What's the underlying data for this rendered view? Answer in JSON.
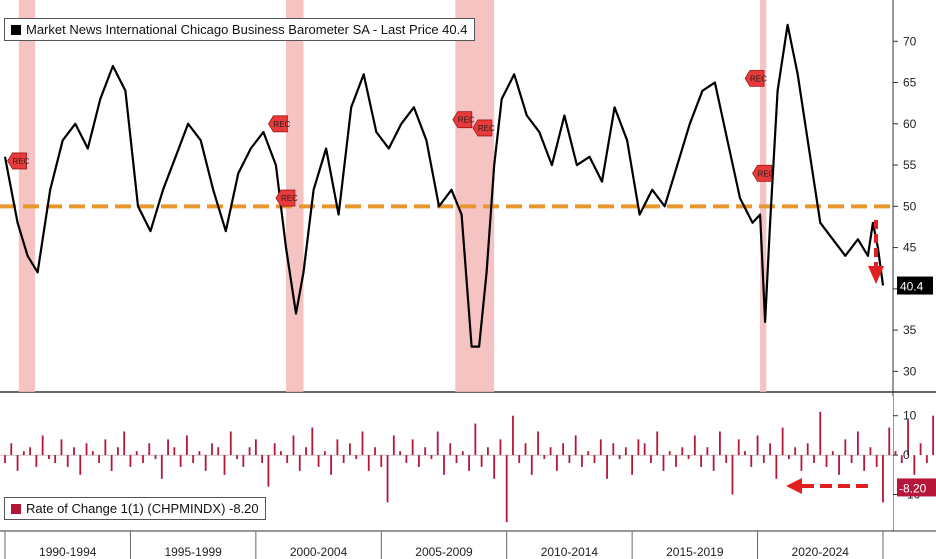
{
  "chart_data": [
    {
      "type": "line",
      "title": "Market News International Chicago Business Barometer SA - Last Price 40.4",
      "series": [
        {
          "name": "Market News International Chicago Business Barometer SA",
          "last_price": 40.4,
          "last_label": "40.4",
          "color": "#000000",
          "x": [
            1990.0,
            1990.5,
            1990.9,
            1991.3,
            1991.8,
            1992.3,
            1992.8,
            1993.3,
            1993.8,
            1994.3,
            1994.8,
            1995.3,
            1995.8,
            1996.3,
            1996.8,
            1997.3,
            1997.8,
            1998.3,
            1998.8,
            1999.3,
            1999.8,
            2000.3,
            2000.8,
            2001.2,
            2001.6,
            2001.9,
            2002.3,
            2002.8,
            2003.3,
            2003.8,
            2004.3,
            2004.8,
            2005.3,
            2005.8,
            2006.3,
            2006.8,
            2007.3,
            2007.8,
            2008.2,
            2008.6,
            2008.9,
            2009.2,
            2009.5,
            2009.8,
            2010.3,
            2010.8,
            2011.3,
            2011.8,
            2012.3,
            2012.8,
            2013.3,
            2013.8,
            2014.3,
            2014.8,
            2015.3,
            2015.8,
            2016.3,
            2016.8,
            2017.3,
            2017.8,
            2018.3,
            2018.8,
            2019.3,
            2019.8,
            2020.1,
            2020.3,
            2020.5,
            2020.8,
            2021.2,
            2021.6,
            2022.0,
            2022.5,
            2023.0,
            2023.5,
            2024.0,
            2024.4,
            2024.6,
            2024.8,
            2025.0
          ],
          "values": [
            56,
            48,
            44,
            42,
            52,
            58,
            60,
            57,
            63,
            67,
            64,
            50,
            47,
            52,
            56,
            60,
            58,
            52,
            47,
            54,
            57,
            59,
            55,
            45,
            37,
            42,
            52,
            57,
            49,
            62,
            66,
            59,
            57,
            60,
            62,
            58,
            50,
            52,
            49,
            33,
            33,
            42,
            55,
            63,
            66,
            61,
            59,
            55,
            61,
            55,
            56,
            53,
            62,
            58,
            49,
            52,
            50,
            55,
            60,
            64,
            65,
            58,
            51,
            48,
            49,
            36,
            48,
            64,
            72,
            66,
            58,
            48,
            46,
            44,
            46,
            44,
            48,
            45,
            40.4
          ]
        }
      ],
      "xlim": [
        1989.8,
        2025.4
      ],
      "ylim": [
        27.5,
        75
      ],
      "y_ticks": [
        30,
        35,
        40,
        45,
        50,
        55,
        60,
        65,
        70
      ],
      "reference_line": {
        "value": 50,
        "style": "dashed",
        "color": "#e8962e"
      },
      "recessions": [
        {
          "start": 1990.55,
          "end": 1991.2
        },
        {
          "start": 2001.2,
          "end": 2001.9
        },
        {
          "start": 2007.95,
          "end": 2009.5
        },
        {
          "start": 2020.1,
          "end": 2020.35
        }
      ],
      "rec_markers": [
        {
          "x": 1990.5,
          "y": 55.5,
          "label": "REC"
        },
        {
          "x": 2000.9,
          "y": 60.0,
          "label": "REC"
        },
        {
          "x": 2001.2,
          "y": 51.0,
          "label": "REC"
        },
        {
          "x": 2008.25,
          "y": 60.5,
          "label": "REC"
        },
        {
          "x": 2009.05,
          "y": 59.5,
          "label": "REC"
        },
        {
          "x": 2019.9,
          "y": 65.5,
          "label": "REC"
        },
        {
          "x": 2020.2,
          "y": 54.0,
          "label": "REC"
        }
      ],
      "colors": {
        "recession": "#f4b8b8",
        "annotation_arrow": "#e02020",
        "rec_marker": "#e83a3a"
      }
    },
    {
      "type": "bar",
      "title": "Rate of Change 1(1) (CHPMINDX) -8.20",
      "series": [
        {
          "name": "Rate of Change 1(1) (CHPMINDX)",
          "last_label": "-8.20",
          "color": "#b5163a",
          "x_start": 1990.0,
          "x_step": 0.25,
          "values": [
            -2,
            3,
            -4,
            1,
            2,
            -3,
            5,
            -1,
            -2,
            4,
            -3,
            2,
            -5,
            3,
            1,
            -2,
            4,
            -4,
            2,
            6,
            -3,
            1,
            -2,
            3,
            -1,
            -6,
            4,
            2,
            -3,
            5,
            -2,
            1,
            -4,
            3,
            2,
            -5,
            6,
            -1,
            -3,
            2,
            4,
            -2,
            -8,
            3,
            1,
            -2,
            5,
            -4,
            2,
            7,
            -3,
            1,
            -5,
            4,
            -2,
            3,
            -1,
            6,
            -4,
            2,
            -3,
            -12,
            5,
            1,
            -2,
            4,
            -3,
            2,
            -1,
            6,
            -5,
            3,
            -2,
            1,
            -4,
            8,
            -3,
            2,
            -6,
            4,
            -17,
            10,
            -2,
            3,
            -5,
            6,
            -1,
            2,
            -4,
            3,
            -2,
            5,
            -3,
            1,
            -2,
            4,
            -6,
            3,
            -1,
            2,
            -5,
            4,
            3,
            -2,
            6,
            -4,
            1,
            -3,
            2,
            -1,
            5,
            -3,
            2,
            -4,
            6,
            -2,
            -10,
            4,
            1,
            -3,
            5,
            -2,
            3,
            -6,
            7,
            -1,
            2,
            -4,
            3,
            -2,
            11,
            -3,
            1,
            -5,
            4,
            -2,
            6,
            -4,
            2,
            -3,
            -12,
            7,
            1,
            -2,
            9,
            -5,
            3,
            -2,
            10,
            -4,
            2,
            -6,
            5,
            -1,
            -4,
            15,
            -3,
            2,
            7,
            -4,
            -3,
            1,
            -5,
            6,
            -2,
            8,
            -1,
            4,
            -4,
            -5,
            14,
            -3,
            2,
            7,
            -4,
            -3,
            6,
            -5,
            2,
            -2,
            -8.2
          ]
        }
      ],
      "xlim": [
        1989.8,
        2025.4
      ],
      "ylim": [
        -19,
        15
      ],
      "y_ticks": [
        10,
        0,
        -10
      ],
      "y_tick_labels": [
        "10",
        "0",
        "-10"
      ]
    }
  ],
  "x_axis": {
    "period_labels": [
      "1990-1994",
      "1995-1999",
      "2000-2004",
      "2005-2009",
      "2010-2014",
      "2015-2019",
      "2020-2024"
    ]
  }
}
